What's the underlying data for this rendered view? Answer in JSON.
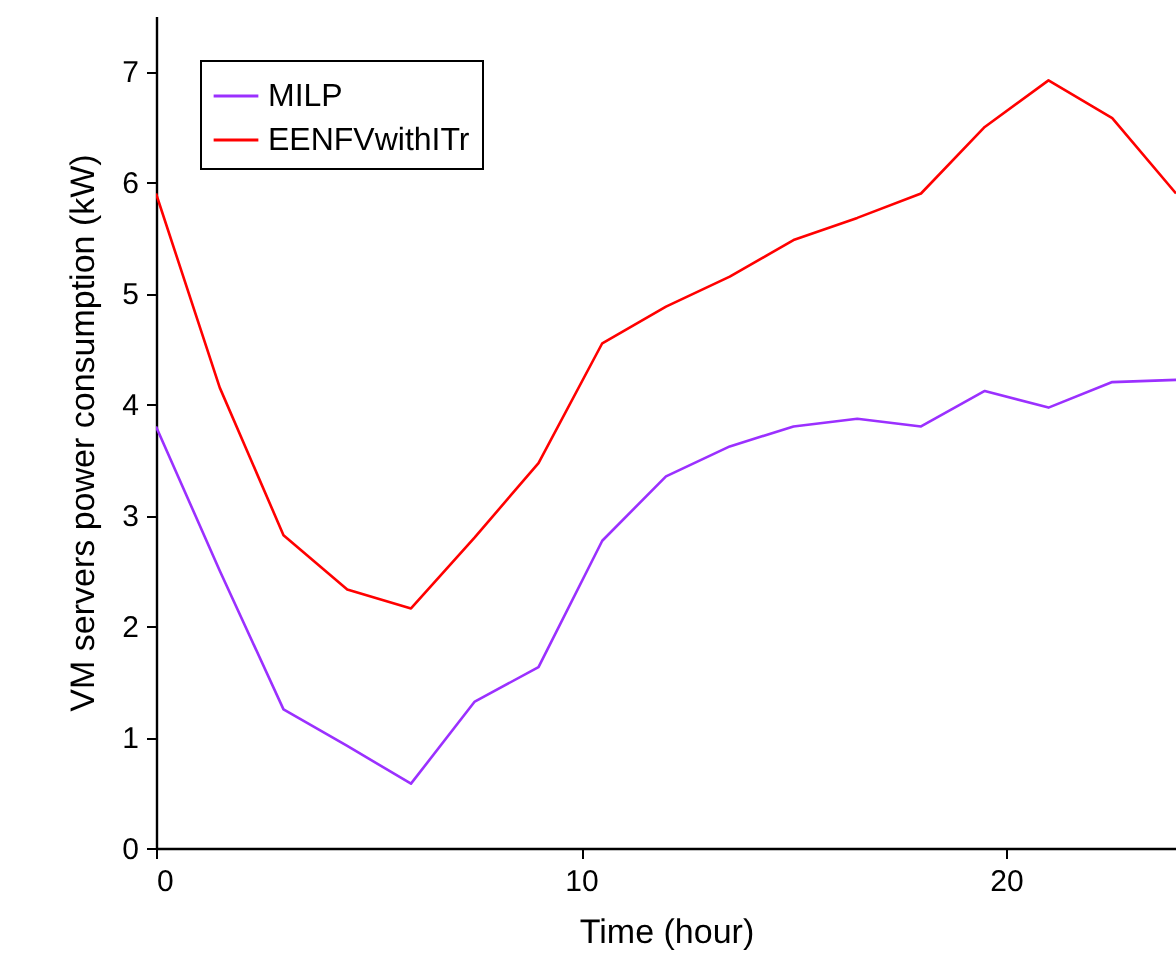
{
  "chart_data": {
    "type": "line",
    "xlabel": "Time (hour)",
    "ylabel": "VM servers power consumption (kW)",
    "x": [
      0,
      1.5,
      3,
      4.5,
      6,
      7.5,
      9,
      10.5,
      12,
      13.5,
      15,
      16.5,
      18,
      19.5,
      21,
      22.5,
      24
    ],
    "series": [
      {
        "name": "MILP",
        "color": "#9b30ff",
        "values": [
          3.8,
          2.5,
          1.25,
          0.92,
          0.58,
          1.32,
          1.63,
          2.77,
          3.35,
          3.62,
          3.8,
          3.87,
          3.8,
          4.12,
          3.97,
          4.2,
          4.22
        ]
      },
      {
        "name": "EENFVwithITr",
        "color": "#ff0000",
        "values": [
          5.9,
          4.15,
          2.82,
          2.33,
          2.16,
          2.8,
          3.47,
          4.55,
          4.88,
          5.15,
          5.48,
          5.68,
          5.9,
          6.5,
          6.92,
          6.58,
          5.9
        ]
      }
    ],
    "xlim": [
      0,
      24
    ],
    "xticks": [
      0,
      10,
      20
    ],
    "ylim": [
      0,
      7.5
    ],
    "yticks": [
      0,
      1,
      2,
      3,
      4,
      5,
      6,
      7
    ],
    "grid": false,
    "legend": "top left",
    "marker": "none",
    "line_style": "solid"
  }
}
